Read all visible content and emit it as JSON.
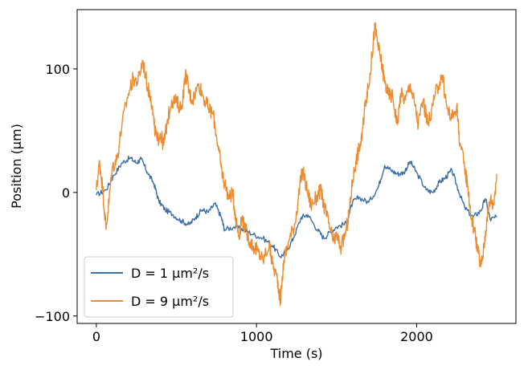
{
  "chart_data": {
    "type": "line",
    "title": "",
    "xlabel": "Time (s)",
    "ylabel": "Position (μm)",
    "xlim": [
      -120,
      2620
    ],
    "ylim": [
      -106,
      148
    ],
    "xticks": [
      0,
      1000,
      2000
    ],
    "yticks": [
      -100,
      0,
      100
    ],
    "xtick_labels": [
      "0",
      "1000",
      "2000"
    ],
    "ytick_labels": [
      "−100",
      "0",
      "100"
    ],
    "grid": false,
    "legend_position": "lower-left",
    "series": [
      {
        "name": "D = 1 μm²/s",
        "color": "#3a6ea5",
        "points": [
          [
            0,
            -2
          ],
          [
            60,
            2
          ],
          [
            110,
            14
          ],
          [
            160,
            24
          ],
          [
            210,
            28
          ],
          [
            250,
            24
          ],
          [
            280,
            27
          ],
          [
            320,
            16
          ],
          [
            360,
            7
          ],
          [
            390,
            -7
          ],
          [
            430,
            -14
          ],
          [
            480,
            -18
          ],
          [
            530,
            -23
          ],
          [
            580,
            -26
          ],
          [
            620,
            -20
          ],
          [
            660,
            -14
          ],
          [
            700,
            -16
          ],
          [
            740,
            -9
          ],
          [
            780,
            -20
          ],
          [
            800,
            -30
          ],
          [
            860,
            -28
          ],
          [
            920,
            -30
          ],
          [
            980,
            -34
          ],
          [
            1040,
            -37
          ],
          [
            1100,
            -43
          ],
          [
            1150,
            -52
          ],
          [
            1190,
            -47
          ],
          [
            1230,
            -37
          ],
          [
            1280,
            -20
          ],
          [
            1320,
            -18
          ],
          [
            1380,
            -30
          ],
          [
            1420,
            -37
          ],
          [
            1460,
            -32
          ],
          [
            1500,
            -28
          ],
          [
            1560,
            -25
          ],
          [
            1600,
            -8
          ],
          [
            1640,
            -4
          ],
          [
            1700,
            -8
          ],
          [
            1760,
            4
          ],
          [
            1800,
            22
          ],
          [
            1840,
            18
          ],
          [
            1880,
            15
          ],
          [
            1920,
            16
          ],
          [
            1960,
            25
          ],
          [
            2000,
            16
          ],
          [
            2060,
            2
          ],
          [
            2100,
            0
          ],
          [
            2140,
            8
          ],
          [
            2180,
            12
          ],
          [
            2220,
            18
          ],
          [
            2260,
            2
          ],
          [
            2300,
            -12
          ],
          [
            2350,
            -20
          ],
          [
            2400,
            -15
          ],
          [
            2430,
            -5
          ],
          [
            2460,
            -22
          ],
          [
            2500,
            -20
          ]
        ]
      },
      {
        "name": "D = 9 μm²/s",
        "color": "#ec8b2f",
        "points": [
          [
            0,
            2
          ],
          [
            20,
            25
          ],
          [
            40,
            3
          ],
          [
            60,
            -30
          ],
          [
            80,
            -5
          ],
          [
            100,
            20
          ],
          [
            130,
            28
          ],
          [
            160,
            55
          ],
          [
            200,
            80
          ],
          [
            230,
            92
          ],
          [
            260,
            90
          ],
          [
            290,
            107
          ],
          [
            320,
            85
          ],
          [
            340,
            78
          ],
          [
            360,
            55
          ],
          [
            380,
            42
          ],
          [
            400,
            48
          ],
          [
            420,
            38
          ],
          [
            440,
            55
          ],
          [
            470,
            75
          ],
          [
            500,
            73
          ],
          [
            530,
            68
          ],
          [
            560,
            97
          ],
          [
            580,
            80
          ],
          [
            600,
            75
          ],
          [
            640,
            88
          ],
          [
            670,
            77
          ],
          [
            700,
            68
          ],
          [
            730,
            63
          ],
          [
            760,
            38
          ],
          [
            780,
            20
          ],
          [
            800,
            8
          ],
          [
            830,
            -5
          ],
          [
            850,
            0
          ],
          [
            870,
            -20
          ],
          [
            890,
            -35
          ],
          [
            910,
            -20
          ],
          [
            930,
            -30
          ],
          [
            960,
            -40
          ],
          [
            990,
            -45
          ],
          [
            1010,
            -48
          ],
          [
            1040,
            -55
          ],
          [
            1080,
            -42
          ],
          [
            1100,
            -58
          ],
          [
            1130,
            -70
          ],
          [
            1150,
            -88
          ],
          [
            1170,
            -55
          ],
          [
            1200,
            -40
          ],
          [
            1240,
            -25
          ],
          [
            1270,
            5
          ],
          [
            1290,
            18
          ],
          [
            1310,
            5
          ],
          [
            1340,
            -10
          ],
          [
            1370,
            -5
          ],
          [
            1400,
            2
          ],
          [
            1420,
            -10
          ],
          [
            1450,
            -25
          ],
          [
            1480,
            -40
          ],
          [
            1500,
            -35
          ],
          [
            1530,
            -45
          ],
          [
            1560,
            -30
          ],
          [
            1580,
            -15
          ],
          [
            1600,
            10
          ],
          [
            1620,
            25
          ],
          [
            1640,
            35
          ],
          [
            1660,
            45
          ],
          [
            1680,
            75
          ],
          [
            1700,
            85
          ],
          [
            1720,
            110
          ],
          [
            1740,
            135
          ],
          [
            1760,
            118
          ],
          [
            1780,
            105
          ],
          [
            1800,
            90
          ],
          [
            1820,
            80
          ],
          [
            1850,
            78
          ],
          [
            1880,
            55
          ],
          [
            1900,
            80
          ],
          [
            1930,
            75
          ],
          [
            1960,
            88
          ],
          [
            1990,
            70
          ],
          [
            2010,
            55
          ],
          [
            2040,
            75
          ],
          [
            2070,
            55
          ],
          [
            2100,
            70
          ],
          [
            2130,
            85
          ],
          [
            2160,
            95
          ],
          [
            2190,
            68
          ],
          [
            2220,
            60
          ],
          [
            2250,
            70
          ],
          [
            2270,
            40
          ],
          [
            2300,
            20
          ],
          [
            2320,
            5
          ],
          [
            2340,
            -20
          ],
          [
            2360,
            -30
          ],
          [
            2380,
            -45
          ],
          [
            2400,
            -60
          ],
          [
            2420,
            -45
          ],
          [
            2440,
            -20
          ],
          [
            2460,
            -5
          ],
          [
            2480,
            -10
          ],
          [
            2500,
            15
          ]
        ]
      }
    ]
  }
}
